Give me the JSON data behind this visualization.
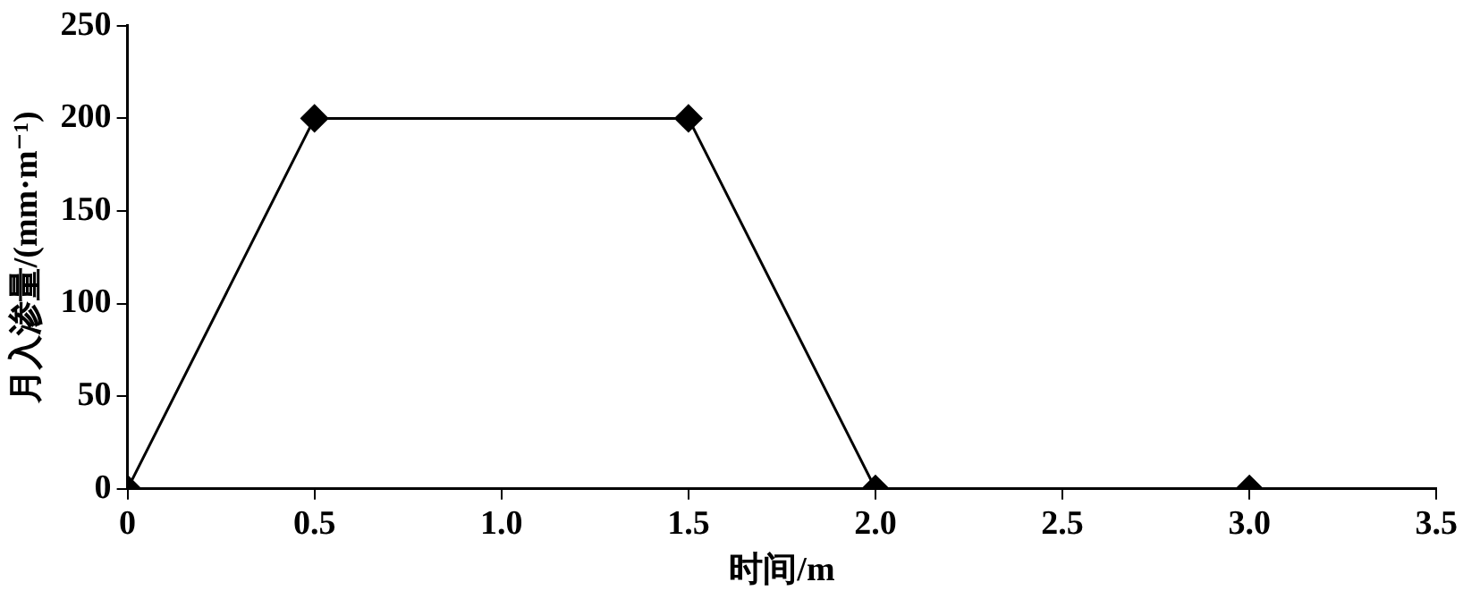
{
  "chart_data": {
    "type": "line",
    "xlabel": "时间/m",
    "ylabel": "月入渗量/(mm·m⁻¹)",
    "x": [
      0,
      0.5,
      1.5,
      2.0,
      3.0
    ],
    "series": [
      {
        "color": "#000000",
        "values": [
          0,
          200,
          200,
          0,
          0
        ]
      }
    ],
    "xlim": [
      0,
      3.5
    ],
    "xticks": [
      {
        "value": 0,
        "label": "0"
      },
      {
        "value": 0.5,
        "label": "0.5"
      },
      {
        "value": 1,
        "label": "1.0"
      },
      {
        "value": 1.5,
        "label": "1.5"
      },
      {
        "value": 2,
        "label": "2.0"
      },
      {
        "value": 2.5,
        "label": "2.5"
      },
      {
        "value": 3,
        "label": "3.0"
      },
      {
        "value": 3.5,
        "label": "3.5"
      }
    ],
    "ylim": [
      0,
      250
    ],
    "yticks": [
      0,
      50,
      100,
      150,
      200,
      250
    ],
    "grid": false,
    "legend": false,
    "marker": "diamond",
    "line_style": "solid"
  }
}
